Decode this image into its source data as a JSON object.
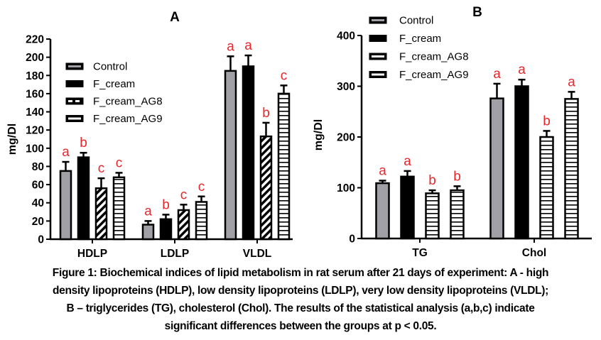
{
  "chart_data": [
    {
      "type": "bar",
      "title": "A",
      "xlabel": "",
      "ylabel": "mg/Dl",
      "ylim": [
        0,
        220
      ],
      "yticks": [
        "0",
        "20",
        "40",
        "60",
        "80",
        "100",
        "120",
        "140",
        "160",
        "180",
        "200",
        "220"
      ],
      "categories": [
        "HDLP",
        "LDLP",
        "VLDL"
      ],
      "legend_position": "upper-left",
      "series": [
        {
          "name": "Control",
          "values": [
            75,
            16,
            185
          ],
          "errors": [
            10,
            4,
            16
          ],
          "letters": [
            "a",
            "a",
            "a"
          ],
          "pattern": "gray"
        },
        {
          "name": "F_cream",
          "values": [
            90,
            22,
            190
          ],
          "errors": [
            5,
            5,
            12
          ],
          "letters": [
            "b",
            "b",
            "a"
          ],
          "pattern": "black"
        },
        {
          "name": "F_cream_AG8",
          "values": [
            56,
            32,
            113
          ],
          "errors": [
            11,
            6,
            15
          ],
          "letters": [
            "c",
            "c",
            "b"
          ],
          "pattern": "diagonal"
        },
        {
          "name": "F_cream_AG9",
          "values": [
            68,
            41,
            160
          ],
          "errors": [
            5,
            6,
            9
          ],
          "letters": [
            "c",
            "c",
            "c"
          ],
          "pattern": "horizontal"
        }
      ]
    },
    {
      "type": "bar",
      "title": "B",
      "xlabel": "",
      "ylabel": "mg/Dl",
      "ylim": [
        0,
        400
      ],
      "yticks": [
        "0",
        "100",
        "200",
        "300",
        "400"
      ],
      "categories": [
        "TG",
        "Chol"
      ],
      "legend_position": "top-left",
      "series": [
        {
          "name": "Control",
          "values": [
            109,
            276
          ],
          "errors": [
            5,
            29
          ],
          "letters": [
            "a",
            "a"
          ],
          "pattern": "gray"
        },
        {
          "name": "F_cream",
          "values": [
            122,
            300
          ],
          "errors": [
            11,
            13
          ],
          "letters": [
            "a",
            "a"
          ],
          "pattern": "black"
        },
        {
          "name": "F_cream_AG8",
          "values": [
            89,
            200
          ],
          "errors": [
            6,
            12
          ],
          "letters": [
            "b",
            "b"
          ],
          "pattern": "horizontal"
        },
        {
          "name": "F_cream_AG9",
          "values": [
            95,
            275
          ],
          "errors": [
            8,
            14
          ],
          "letters": [
            "b",
            "a"
          ],
          "pattern": "horizontal"
        }
      ]
    }
  ],
  "colors": {
    "letters": "#e8262b",
    "gray": "#a0a0a6",
    "black": "#000000"
  },
  "caption": {
    "lines": [
      "Figure 1: Biochemical indices of lipid metabolism in rat serum after 21 days of experiment: A - high",
      "density lipoproteins (HDLP), low density lipoproteins (LDLP), very low density lipoproteins (VLDL);",
      "B – triglycerides (TG), cholesterol (Chol). The results of the statistical analysis (a,b,c) indicate",
      "significant differences between the groups at p < 0.05."
    ]
  }
}
